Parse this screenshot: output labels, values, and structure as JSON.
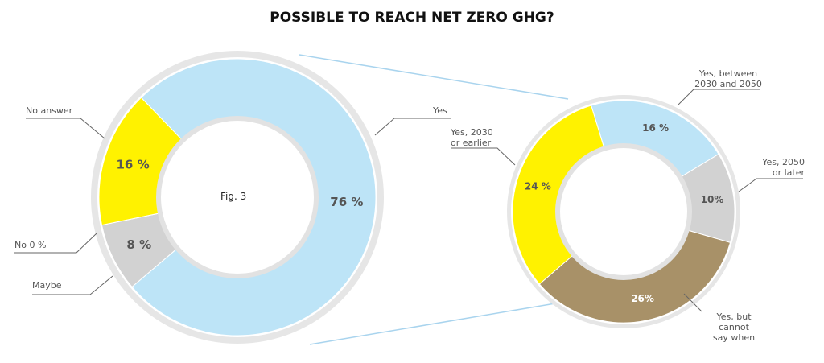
{
  "chart_data": [
    {
      "type": "pie",
      "title": "POSSIBLE TO REACH NET ZERO GHG?",
      "annotation": "Fig. 3",
      "categories": [
        "Yes",
        "Maybe",
        "No 0 %",
        "No answer"
      ],
      "values": [
        76,
        8,
        0,
        16
      ],
      "value_labels": [
        "76 %",
        "8 %",
        null,
        "16 %"
      ],
      "colors": [
        "#bde4f7",
        "#d2d2d2",
        "#ffffff",
        "#fff200"
      ]
    },
    {
      "type": "pie",
      "categories": [
        "Yes, between\n2030 and 2050",
        "Yes, 2050\nor later",
        "Yes, but cannot\nsay when",
        "Yes, 2030\nor earlier"
      ],
      "values": [
        16,
        10,
        26,
        24
      ],
      "value_labels": [
        "16 %",
        "10%",
        "26%",
        "24 %"
      ],
      "colors": [
        "#bde4f7",
        "#d2d2d2",
        "#a89168",
        "#fff200"
      ]
    }
  ]
}
